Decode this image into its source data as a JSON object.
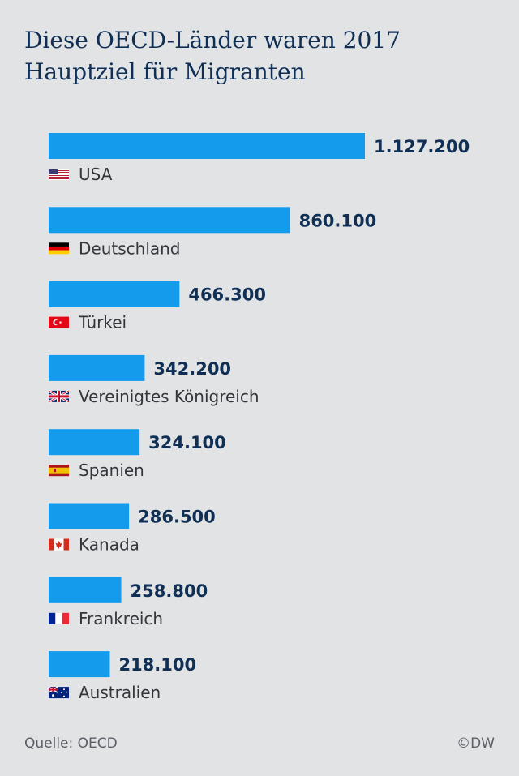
{
  "title_line1": "Diese OECD-Länder waren 2017",
  "title_line2": "Hauptziel für Migranten",
  "source": "Quelle: OECD",
  "credit": "©DW",
  "colors": {
    "bar": "#149bec",
    "value": "#102f55",
    "label": "#33363b"
  },
  "chart_data": {
    "type": "bar",
    "orientation": "horizontal",
    "categories": [
      "USA",
      "Deutschland",
      "Türkei",
      "Vereinigtes Königreich",
      "Spanien",
      "Kanada",
      "Frankreich",
      "Australien"
    ],
    "values": [
      1127200,
      860100,
      466300,
      342200,
      324100,
      286500,
      258800,
      218100
    ],
    "value_labels": [
      "1.127.200",
      "860.100",
      "466.300",
      "342.200",
      "324.100",
      "286.500",
      "258.800",
      "218.100"
    ],
    "flags": [
      "us-flag-icon",
      "de-flag-icon",
      "tr-flag-icon",
      "uk-flag-icon",
      "es-flag-icon",
      "ca-flag-icon",
      "fr-flag-icon",
      "au-flag-icon"
    ],
    "xlim": [
      0,
      1127200
    ],
    "grid": false
  }
}
